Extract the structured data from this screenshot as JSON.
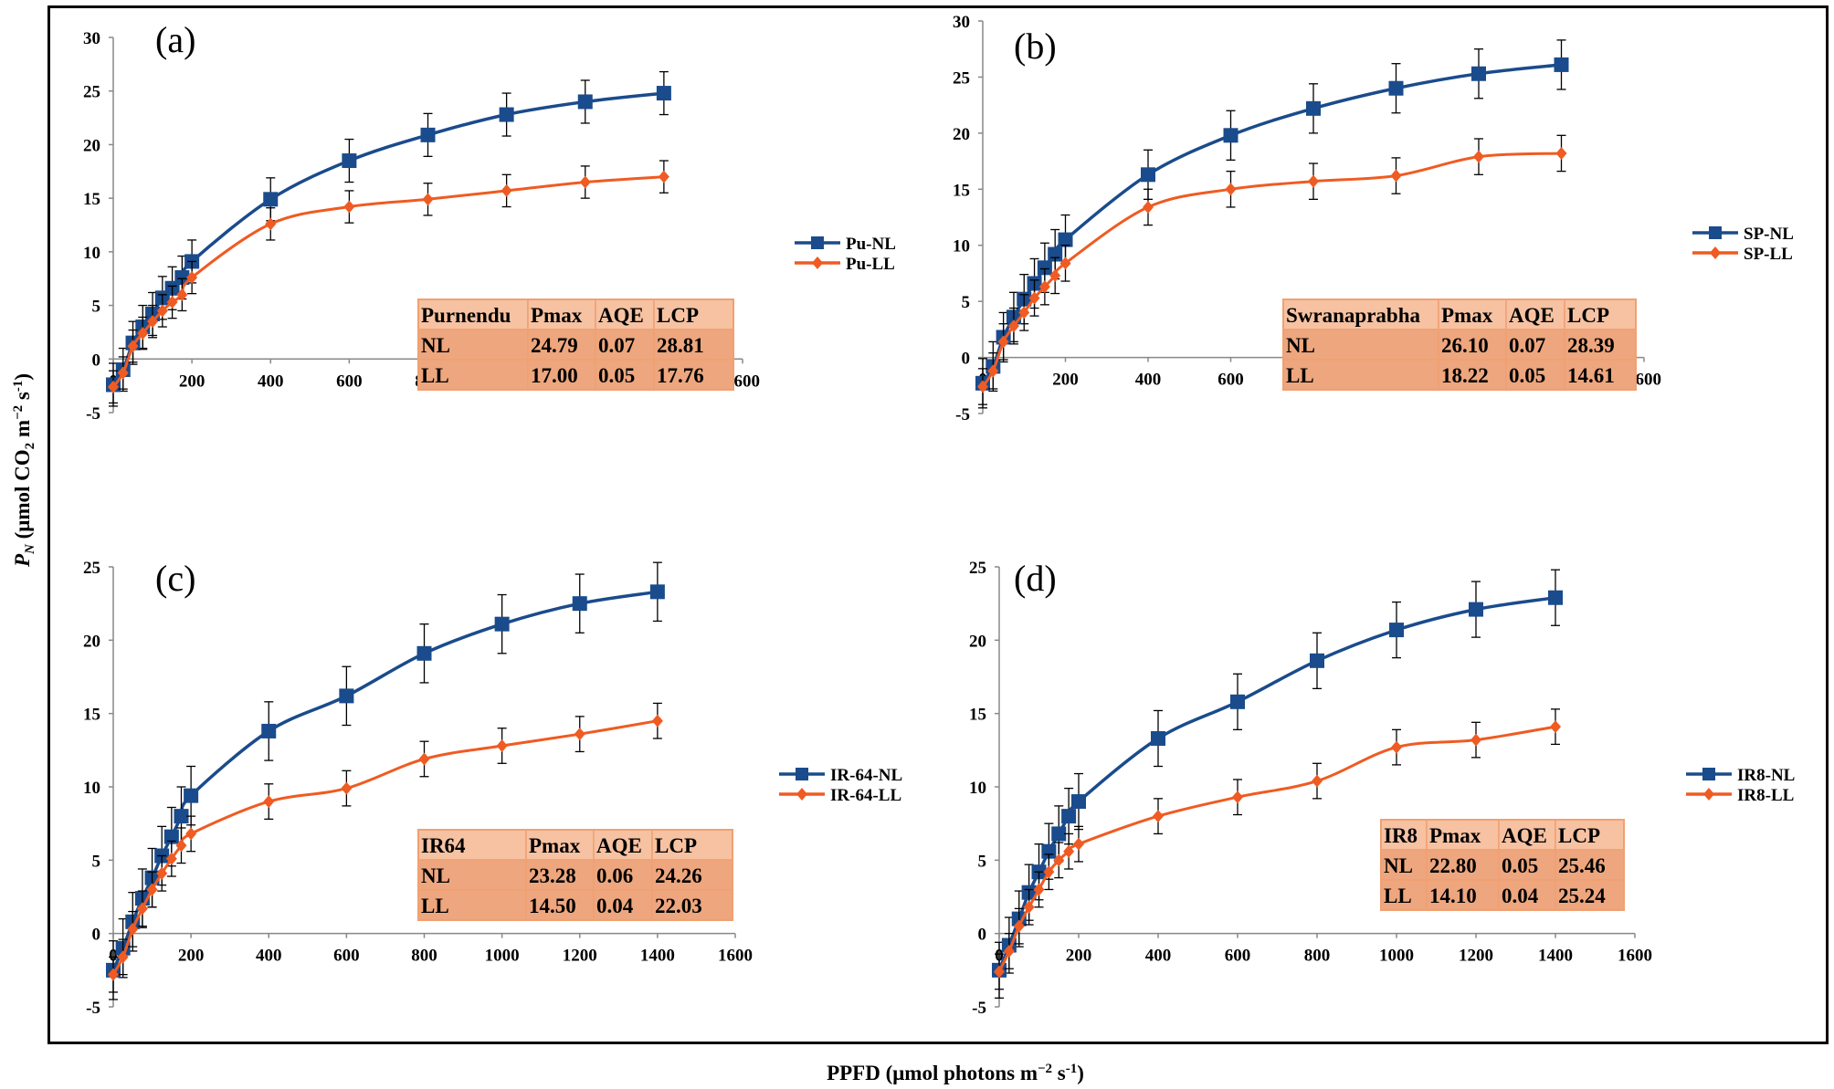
{
  "axis_labels": {
    "y_main": "P",
    "y_sub": "N",
    "y_rest": " (μmol CO",
    "y_sub2": "2",
    "y_rest2": " m",
    "y_sup": "−2",
    "y_rest3": " s",
    "y_sup2": "-1",
    "y_end": ")",
    "x_main": "PPFD (μmol photons m",
    "x_sup": "−2",
    "x_rest": " s",
    "x_sup2": "-1",
    "x_end": ")"
  },
  "colors": {
    "NL": "#1a4b8c",
    "LL": "#ef5b22",
    "table_header": "#f6c2a2",
    "table_row": "#eda67e",
    "table_border": "#f1a071"
  },
  "chart_data": [
    {
      "type": "line",
      "panel_label": "(a)",
      "x": [
        0,
        25,
        50,
        75,
        100,
        125,
        150,
        175,
        200,
        400,
        600,
        800,
        1000,
        1200,
        1400
      ],
      "xlim": [
        0,
        1600
      ],
      "ylim": [
        -5,
        30
      ],
      "xticks": [
        0,
        200,
        400,
        600,
        800,
        1000,
        1200,
        1400,
        1600
      ],
      "yticks": [
        -5,
        0,
        5,
        10,
        15,
        20,
        25,
        30
      ],
      "series": [
        {
          "name": "Pu-NL",
          "marker": "square",
          "values": [
            -2.4,
            -1.0,
            1.5,
            3.0,
            4.2,
            5.7,
            6.6,
            7.6,
            9.1,
            14.9,
            18.5,
            20.9,
            22.8,
            24.0,
            24.8
          ],
          "error": 2.0
        },
        {
          "name": "Pu-LL",
          "marker": "diamond",
          "values": [
            -2.6,
            -1.3,
            1.2,
            2.4,
            3.5,
            4.5,
            5.3,
            6.0,
            7.6,
            12.6,
            14.2,
            14.9,
            15.7,
            16.5,
            17.0
          ],
          "error": 1.5
        }
      ],
      "table": {
        "header": [
          "Purnendu",
          "Pmax",
          "AQE",
          "LCP"
        ],
        "rows": [
          [
            "NL",
            "24.79",
            "0.07",
            "28.81"
          ],
          [
            "LL",
            "17.00",
            "0.05",
            "17.76"
          ]
        ]
      }
    },
    {
      "type": "line",
      "panel_label": "(b)",
      "x": [
        0,
        25,
        50,
        75,
        100,
        125,
        150,
        175,
        200,
        400,
        600,
        800,
        1000,
        1200,
        1400
      ],
      "xlim": [
        0,
        1600
      ],
      "ylim": [
        -5,
        30
      ],
      "xticks": [
        0,
        200,
        400,
        600,
        800,
        1000,
        1200,
        1400,
        1600
      ],
      "yticks": [
        -5,
        0,
        5,
        10,
        15,
        20,
        25,
        30
      ],
      "series": [
        {
          "name": "SP-NL",
          "marker": "square",
          "values": [
            -2.3,
            -0.8,
            1.8,
            3.6,
            5.2,
            6.6,
            8.0,
            9.2,
            10.5,
            16.3,
            19.8,
            22.2,
            24.0,
            25.3,
            26.1
          ],
          "error": 2.2
        },
        {
          "name": "SP-LL",
          "marker": "diamond",
          "values": [
            -2.6,
            -1.2,
            1.4,
            2.8,
            4.0,
            5.3,
            6.3,
            7.3,
            8.4,
            13.4,
            15.0,
            15.7,
            16.2,
            17.9,
            18.2
          ],
          "error": 1.6
        }
      ],
      "table": {
        "header": [
          "Swranaprabha",
          "Pmax",
          "AQE",
          "LCP"
        ],
        "rows": [
          [
            "NL",
            "26.10",
            "0.07",
            "28.39"
          ],
          [
            "LL",
            "18.22",
            "0.05",
            "14.61"
          ]
        ]
      }
    },
    {
      "type": "line",
      "panel_label": "(c)",
      "x": [
        0,
        25,
        50,
        75,
        100,
        125,
        150,
        175,
        200,
        400,
        600,
        800,
        1000,
        1200,
        1400
      ],
      "xlim": [
        0,
        1600
      ],
      "ylim": [
        -5,
        25
      ],
      "xticks": [
        0,
        200,
        400,
        600,
        800,
        1000,
        1200,
        1400,
        1600
      ],
      "yticks": [
        -5,
        0,
        5,
        10,
        15,
        20,
        25
      ],
      "series": [
        {
          "name": "IR-64-NL",
          "marker": "square",
          "values": [
            -2.5,
            -1.0,
            0.8,
            2.4,
            3.8,
            5.3,
            6.6,
            8.0,
            9.4,
            13.8,
            16.2,
            19.1,
            21.1,
            22.5,
            23.3
          ],
          "error": 2.0
        },
        {
          "name": "IR-64-LL",
          "marker": "diamond",
          "values": [
            -2.8,
            -1.6,
            0.3,
            1.7,
            3.0,
            4.1,
            5.1,
            6.0,
            6.8,
            9.0,
            9.9,
            11.9,
            12.8,
            13.6,
            14.5
          ],
          "error": 1.2
        }
      ],
      "table": {
        "header": [
          "IR64",
          "Pmax",
          "AQE",
          "LCP"
        ],
        "rows": [
          [
            "NL",
            "23.28",
            "0.06",
            "24.26"
          ],
          [
            "LL",
            "14.50",
            "0.04",
            "22.03"
          ]
        ]
      }
    },
    {
      "type": "line",
      "panel_label": "(d)",
      "x": [
        0,
        25,
        50,
        75,
        100,
        125,
        150,
        175,
        200,
        400,
        600,
        800,
        1000,
        1200,
        1400
      ],
      "xlim": [
        0,
        1600
      ],
      "ylim": [
        -5,
        25
      ],
      "xticks": [
        0,
        200,
        400,
        600,
        800,
        1000,
        1200,
        1400,
        1600
      ],
      "yticks": [
        -5,
        0,
        5,
        10,
        15,
        20,
        25
      ],
      "series": [
        {
          "name": "IR8-NL",
          "marker": "square",
          "values": [
            -2.5,
            -0.8,
            1.0,
            2.8,
            4.2,
            5.6,
            6.8,
            8.0,
            9.0,
            13.3,
            15.8,
            18.6,
            20.7,
            22.1,
            22.9
          ],
          "error": 1.9
        },
        {
          "name": "IR8-LL",
          "marker": "diamond",
          "values": [
            -2.6,
            -1.2,
            0.5,
            1.8,
            3.0,
            4.2,
            5.0,
            5.6,
            6.1,
            8.0,
            9.3,
            10.4,
            12.7,
            13.2,
            14.1
          ],
          "error": 1.2
        }
      ],
      "table": {
        "header": [
          "IR8",
          "Pmax",
          "AQE",
          "LCP"
        ],
        "rows": [
          [
            "NL",
            "22.80",
            "0.05",
            "25.46"
          ],
          [
            "LL",
            "14.10",
            "0.04",
            "25.24"
          ]
        ]
      }
    }
  ]
}
